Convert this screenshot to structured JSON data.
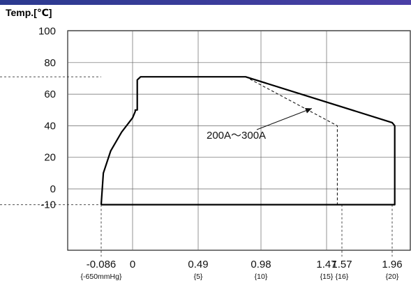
{
  "chart_data": {
    "type": "line",
    "title": "",
    "ylabel": "Temp.[℃]",
    "xlabel": "",
    "ylim": [
      -35,
      100
    ],
    "y_ticks": [
      100,
      80,
      60,
      40,
      20,
      0,
      -10
    ],
    "x_ticks": [
      {
        "value": -0.086,
        "label": "-0.086",
        "sub": "{-650mmHg}"
      },
      {
        "value": 0,
        "label": "0",
        "sub": ""
      },
      {
        "value": 0.49,
        "label": "0.49",
        "sub": "{5}"
      },
      {
        "value": 0.98,
        "label": "0.98",
        "sub": "{10}"
      },
      {
        "value": 1.47,
        "label": "1.47",
        "sub": "{15}"
      },
      {
        "value": 1.57,
        "label": "1.57",
        "sub": "{16}"
      },
      {
        "value": 1.96,
        "label": "1.96",
        "sub": "{20}"
      }
    ],
    "series": [
      {
        "style": "solid",
        "color": "#000000",
        "points": [
          [
            -0.086,
            -10
          ],
          [
            -0.08,
            10
          ],
          [
            -0.06,
            24
          ],
          [
            -0.03,
            36
          ],
          [
            0,
            45
          ],
          [
            0.02,
            49
          ],
          [
            0.02,
            50
          ],
          [
            0.035,
            50
          ],
          [
            0.035,
            69
          ],
          [
            0.06,
            71
          ],
          [
            0.86,
            71
          ],
          [
            1.96,
            42
          ],
          [
            1.98,
            40
          ],
          [
            1.98,
            -10
          ],
          [
            -0.086,
            -10
          ]
        ]
      },
      {
        "style": "dashed",
        "color": "#000000",
        "points": [
          [
            0.86,
            71
          ],
          [
            1.54,
            40
          ],
          [
            1.54,
            -10
          ]
        ]
      }
    ],
    "reference_lines": [
      {
        "axis": "y",
        "value": 71
      },
      {
        "axis": "y",
        "value": -10
      },
      {
        "axis": "x",
        "value": -0.086
      },
      {
        "axis": "x",
        "value": 1.57
      },
      {
        "axis": "x",
        "value": 1.96
      }
    ],
    "annotations": [
      {
        "text": "200A～300A",
        "arrow_to": [
          1.36,
          51
        ]
      }
    ],
    "grid": true
  }
}
